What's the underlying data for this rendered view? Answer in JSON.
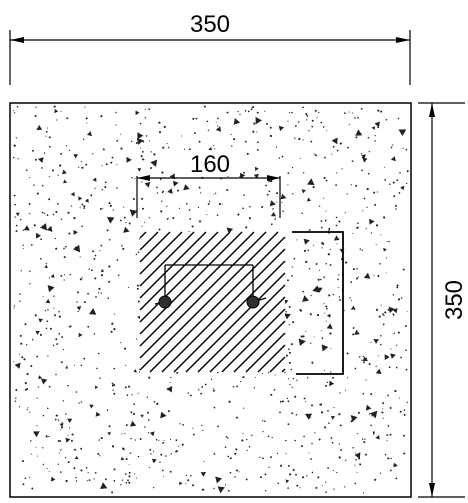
{
  "drawing": {
    "dim_top": "350",
    "dim_right": "350",
    "dim_inner": "160"
  },
  "colors": {
    "line": "#000000",
    "background": "#ffffff",
    "speckle": "#222222"
  }
}
